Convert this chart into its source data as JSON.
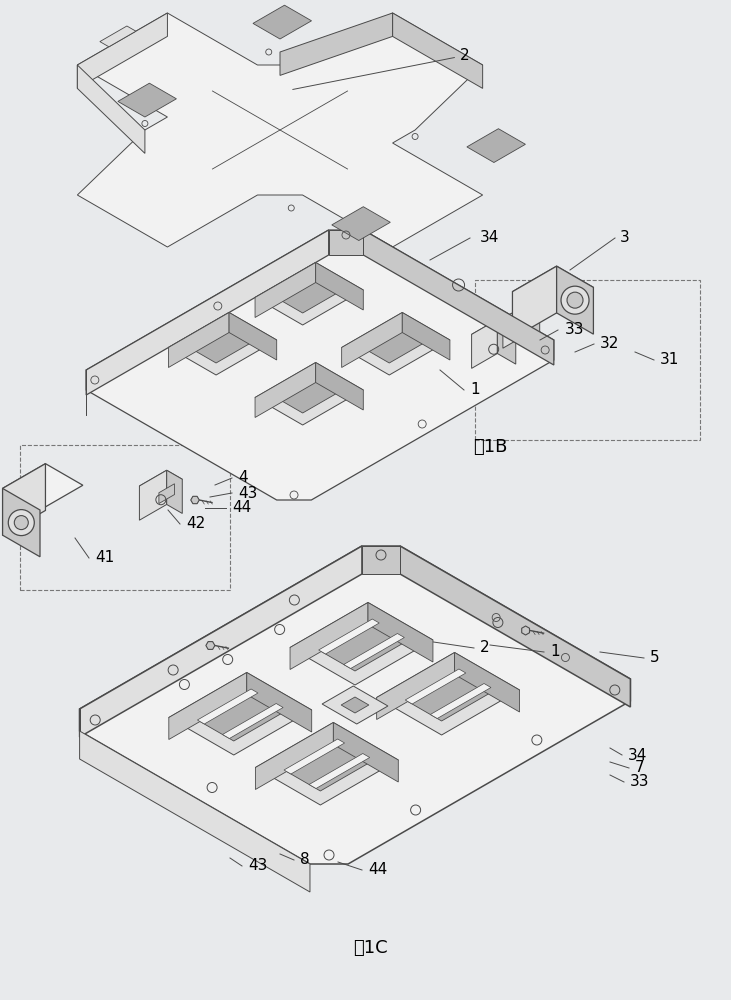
{
  "background_color": "#e8eaec",
  "line_color": "#4a4a4a",
  "face_light": "#f2f2f2",
  "face_mid": "#e0e0e0",
  "face_dark": "#c8c8c8",
  "face_darker": "#b0b0b0",
  "fig1b_label": "图1B",
  "fig1c_label": "图1C",
  "annotation_fontsize": 11,
  "label_fontsize": 13
}
